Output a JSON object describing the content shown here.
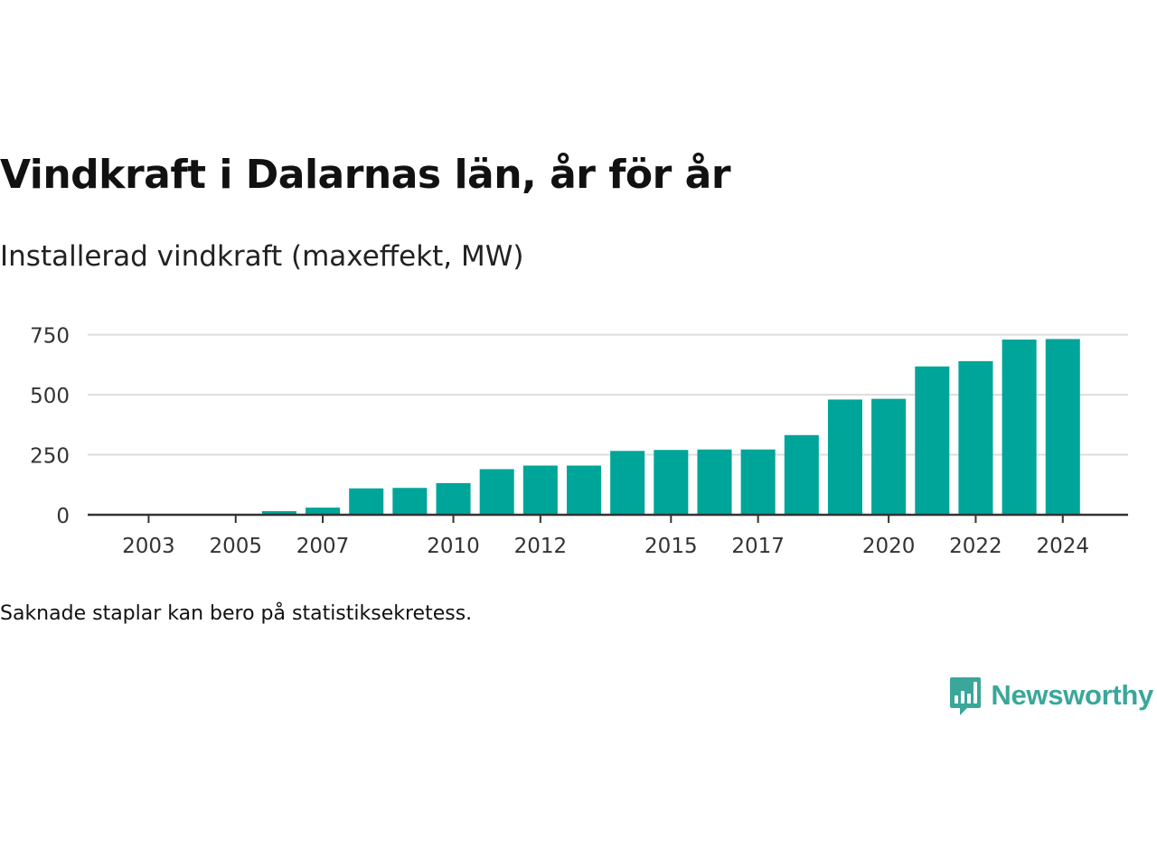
{
  "title": "Vindkraft i Dalarnas län, år för år",
  "subtitle": "Installerad vindkraft (maxeffekt, MW)",
  "footnote": "Saknade staplar kan bero på statistiksekretess.",
  "brand": {
    "name": "Newsworthy",
    "logo_icon": "bar-chart-speech-bubble-icon",
    "color": "#3aa79a"
  },
  "colors": {
    "bar": "#00a599",
    "grid": "#dddddd",
    "axis": "#333333",
    "tick_text": "#333333"
  },
  "chart_data": {
    "type": "bar",
    "title": "Vindkraft i Dalarnas län, år för år",
    "subtitle": "Installerad vindkraft (maxeffekt, MW)",
    "xlabel": "",
    "ylabel": "",
    "x_range": [
      2001.6,
      2025.5
    ],
    "ylim": [
      0,
      790
    ],
    "yticks": [
      0,
      250,
      500,
      750
    ],
    "xticks": [
      2003,
      2005,
      2007,
      2010,
      2012,
      2015,
      2017,
      2020,
      2022,
      2024
    ],
    "grid": true,
    "legend": "none",
    "categories": [
      2006,
      2007,
      2008,
      2009,
      2010,
      2011,
      2012,
      2013,
      2014,
      2015,
      2016,
      2017,
      2018,
      2019,
      2020,
      2021,
      2022,
      2023,
      2024
    ],
    "values": [
      15,
      30,
      110,
      112,
      132,
      190,
      205,
      205,
      266,
      270,
      272,
      272,
      332,
      480,
      483,
      618,
      640,
      730,
      732
    ]
  }
}
